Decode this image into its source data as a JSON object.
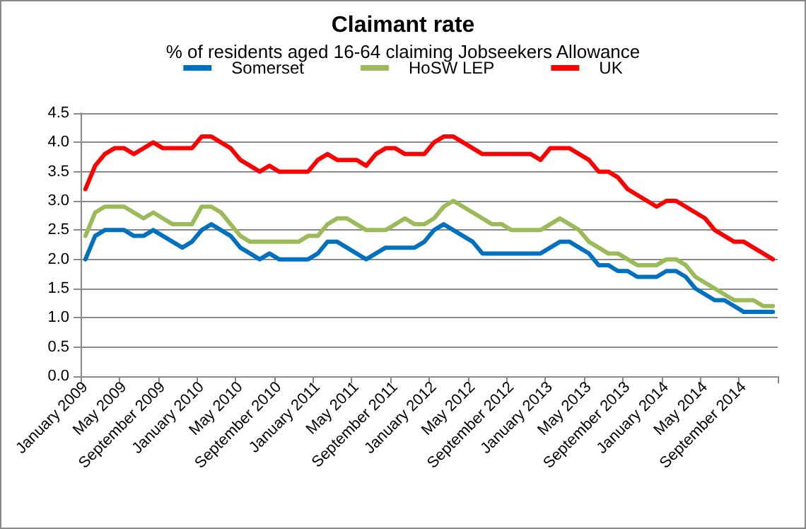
{
  "chart_data": {
    "type": "line",
    "title": "Claimant rate",
    "subtitle": "% of residents aged 16-64 claiming Jobseekers Allowance",
    "categories": [
      "January 2009",
      null,
      null,
      null,
      "May 2009",
      null,
      null,
      null,
      "September 2009",
      null,
      null,
      null,
      "January 2010",
      null,
      null,
      null,
      "May 2010",
      null,
      null,
      null,
      "September 2010",
      null,
      null,
      null,
      "January 2011",
      null,
      null,
      null,
      "May 2011",
      null,
      null,
      null,
      "September 2011",
      null,
      null,
      null,
      "January 2012",
      null,
      null,
      null,
      "May 2012",
      null,
      null,
      null,
      "September 2012",
      null,
      null,
      null,
      "January 2013",
      null,
      null,
      null,
      "May 2013",
      null,
      null,
      null,
      "September 2013",
      null,
      null,
      null,
      "January 2014",
      null,
      null,
      null,
      "May 2014",
      null,
      null,
      null,
      "September 2014",
      null,
      null,
      null
    ],
    "series": [
      {
        "name": "Somerset",
        "color": "#0070c0",
        "values": [
          2.0,
          2.4,
          2.5,
          2.5,
          2.5,
          2.4,
          2.4,
          2.5,
          2.4,
          2.3,
          2.2,
          2.3,
          2.5,
          2.6,
          2.5,
          2.4,
          2.2,
          2.1,
          2.0,
          2.1,
          2.0,
          2.0,
          2.0,
          2.0,
          2.1,
          2.3,
          2.3,
          2.2,
          2.1,
          2.0,
          2.1,
          2.2,
          2.2,
          2.2,
          2.2,
          2.3,
          2.5,
          2.6,
          2.5,
          2.4,
          2.3,
          2.1,
          2.1,
          2.1,
          2.1,
          2.1,
          2.1,
          2.1,
          2.2,
          2.3,
          2.3,
          2.2,
          2.1,
          1.9,
          1.9,
          1.8,
          1.8,
          1.7,
          1.7,
          1.7,
          1.8,
          1.8,
          1.7,
          1.5,
          1.4,
          1.3,
          1.3,
          1.2,
          1.1,
          1.1,
          1.1,
          1.1
        ]
      },
      {
        "name": "HoSW LEP",
        "color": "#9bbb59",
        "values": [
          2.4,
          2.8,
          2.9,
          2.9,
          2.9,
          2.8,
          2.7,
          2.8,
          2.7,
          2.6,
          2.6,
          2.6,
          2.9,
          2.9,
          2.8,
          2.6,
          2.4,
          2.3,
          2.3,
          2.3,
          2.3,
          2.3,
          2.3,
          2.4,
          2.4,
          2.6,
          2.7,
          2.7,
          2.6,
          2.5,
          2.5,
          2.5,
          2.6,
          2.7,
          2.6,
          2.6,
          2.7,
          2.9,
          3.0,
          2.9,
          2.8,
          2.7,
          2.6,
          2.6,
          2.5,
          2.5,
          2.5,
          2.5,
          2.6,
          2.7,
          2.6,
          2.5,
          2.3,
          2.2,
          2.1,
          2.1,
          2.0,
          1.9,
          1.9,
          1.9,
          2.0,
          2.0,
          1.9,
          1.7,
          1.6,
          1.5,
          1.4,
          1.3,
          1.3,
          1.3,
          1.2,
          1.2
        ]
      },
      {
        "name": "UK",
        "color": "#ff0000",
        "values": [
          3.2,
          3.6,
          3.8,
          3.9,
          3.9,
          3.8,
          3.9,
          4.0,
          3.9,
          3.9,
          3.9,
          3.9,
          4.1,
          4.1,
          4.0,
          3.9,
          3.7,
          3.6,
          3.5,
          3.6,
          3.5,
          3.5,
          3.5,
          3.5,
          3.7,
          3.8,
          3.7,
          3.7,
          3.7,
          3.6,
          3.8,
          3.9,
          3.9,
          3.8,
          3.8,
          3.8,
          4.0,
          4.1,
          4.1,
          4.0,
          3.9,
          3.8,
          3.8,
          3.8,
          3.8,
          3.8,
          3.8,
          3.7,
          3.9,
          3.9,
          3.9,
          3.8,
          3.7,
          3.5,
          3.5,
          3.4,
          3.2,
          3.1,
          3.0,
          2.9,
          3.0,
          3.0,
          2.9,
          2.8,
          2.7,
          2.5,
          2.4,
          2.3,
          2.3,
          2.2,
          2.1,
          2.0
        ]
      }
    ],
    "ylim": [
      0,
      4.5
    ],
    "yticks": [
      {
        "value": 0,
        "label": "0.0"
      },
      {
        "value": 0.5,
        "label": "0.5"
      },
      {
        "value": 1,
        "label": "1.0"
      },
      {
        "value": 1.5,
        "label": "1.5"
      },
      {
        "value": 2,
        "label": "2.0"
      },
      {
        "value": 2.5,
        "label": "2.5"
      },
      {
        "value": 3,
        "label": "3.0"
      },
      {
        "value": 3.5,
        "label": "3.5"
      },
      {
        "value": 4,
        "label": "4.0"
      },
      {
        "value": 4.5,
        "label": "4.5"
      }
    ],
    "grid": "y",
    "legend": "top",
    "marker": "none",
    "line_style": "solid"
  }
}
